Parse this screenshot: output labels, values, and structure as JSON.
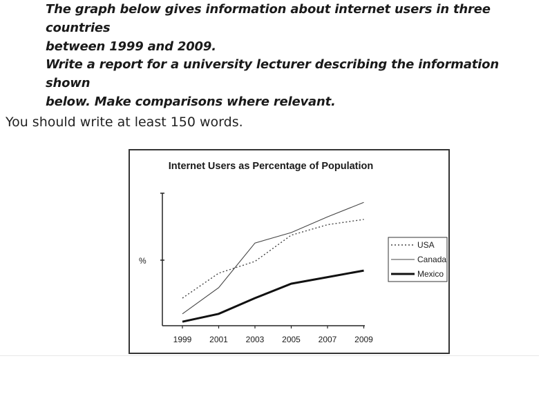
{
  "task": {
    "line_1": "The graph below gives information about internet users in three countries",
    "line_2": "between 1999 and 2009.",
    "line_3": "Write a report for a university lecturer describing the information shown",
    "line_4": "below. Make comparisons where relevant."
  },
  "instruction": "You should write at least 150 words.",
  "chart_data": {
    "type": "line",
    "title": "Internet Users as Percentage of Population",
    "xlabel": "",
    "ylabel": "%",
    "x": [
      1999,
      2001,
      2003,
      2005,
      2007,
      2009
    ],
    "tick_labels": [
      "1999",
      "2001",
      "2003",
      "2005",
      "2007",
      "2009"
    ],
    "y_scale_shown": false,
    "ylim": [
      0,
      100
    ],
    "legend_position": "right",
    "series": [
      {
        "name": "USA",
        "style": "dotted",
        "values": [
          20,
          39,
          48,
          68,
          76,
          80
        ],
        "color": "#444444"
      },
      {
        "name": "Canada",
        "style": "solid-thin",
        "values": [
          8,
          28,
          62,
          70,
          82,
          93
        ],
        "color": "#444444"
      },
      {
        "name": "Mexico",
        "style": "solid-thick",
        "values": [
          2,
          8,
          20,
          31,
          36,
          41
        ],
        "color": "#111111"
      }
    ]
  }
}
